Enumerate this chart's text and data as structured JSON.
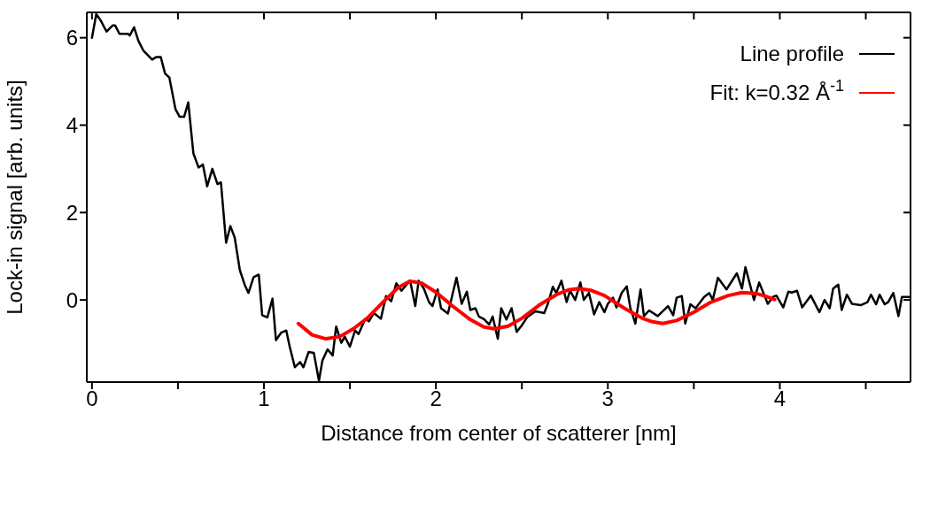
{
  "chart_data": {
    "type": "line",
    "xlabel": "Distance from center of scatterer [nm]",
    "ylabel": "Lock-in signal [arb. units]",
    "xlim": [
      -0.03,
      4.76
    ],
    "ylim": [
      -1.88,
      6.58
    ],
    "xticks": [
      0,
      {
        "value": 0.5,
        "label": null
      },
      1,
      {
        "value": 1.5,
        "label": null
      },
      2,
      {
        "value": 2.5,
        "label": null
      },
      3,
      {
        "value": 3.5,
        "label": null
      },
      4,
      {
        "value": 4.5,
        "label": null
      }
    ],
    "yticks": [
      0,
      2,
      4,
      6
    ],
    "grid": false,
    "legend": "top right",
    "marker": "none",
    "line_style": "solid",
    "series": [
      {
        "name": "Line profile",
        "color": "#000000",
        "x": [
          0,
          0.025,
          0.05,
          0.085,
          0.12,
          0.135,
          0.16,
          0.21,
          0.22,
          0.245,
          0.27,
          0.3,
          0.35,
          0.375,
          0.4,
          0.425,
          0.45,
          0.486,
          0.51,
          0.536,
          0.56,
          0.59,
          0.62,
          0.645,
          0.67,
          0.7,
          0.73,
          0.75,
          0.78,
          0.805,
          0.83,
          0.86,
          0.89,
          0.91,
          0.94,
          0.97,
          0.99,
          1.02,
          1.05,
          1.07,
          1.1,
          1.13,
          1.15,
          1.18,
          1.21,
          1.23,
          1.26,
          1.29,
          1.32,
          1.34,
          1.37,
          1.4,
          1.42,
          1.45,
          1.47,
          1.5,
          1.53,
          1.55,
          1.59,
          1.61,
          1.64,
          1.68,
          1.71,
          1.74,
          1.77,
          1.8,
          1.83,
          1.85,
          1.88,
          1.9,
          1.93,
          1.96,
          1.98,
          2.01,
          2.03,
          2.07,
          2.12,
          2.15,
          2.18,
          2.2,
          2.23,
          2.25,
          2.28,
          2.31,
          2.33,
          2.36,
          2.38,
          2.41,
          2.44,
          2.47,
          2.5,
          2.53,
          2.56,
          2.58,
          2.63,
          2.65,
          2.68,
          2.7,
          2.73,
          2.76,
          2.78,
          2.81,
          2.84,
          2.86,
          2.89,
          2.92,
          2.95,
          2.98,
          3,
          3.03,
          3.05,
          3.08,
          3.11,
          3.13,
          3.16,
          3.19,
          3.21,
          3.24,
          3.29,
          3.35,
          3.38,
          3.4,
          3.43,
          3.45,
          3.48,
          3.51,
          3.56,
          3.59,
          3.61,
          3.64,
          3.69,
          3.75,
          3.78,
          3.8,
          3.85,
          3.88,
          3.93,
          3.96,
          3.98,
          4.02,
          4.05,
          4.07,
          4.1,
          4.13,
          4.18,
          4.23,
          4.26,
          4.29,
          4.31,
          4.34,
          4.36,
          4.39,
          4.42,
          4.47,
          4.51,
          4.53,
          4.56,
          4.58,
          4.61,
          4.63,
          4.66,
          4.69,
          4.71,
          4.75
        ],
        "values": [
          6.0,
          6.54,
          6.4,
          6.14,
          6.28,
          6.28,
          6.09,
          6.09,
          6.05,
          6.24,
          5.93,
          5.7,
          5.5,
          5.56,
          5.56,
          5.18,
          5.09,
          4.36,
          4.19,
          4.19,
          4.52,
          3.35,
          3.03,
          3.1,
          2.6,
          3.0,
          2.65,
          2.69,
          1.31,
          1.69,
          1.43,
          0.68,
          0.33,
          0.16,
          0.52,
          0.58,
          -0.35,
          -0.4,
          0.03,
          -0.92,
          -0.75,
          -0.7,
          -1.07,
          -1.54,
          -1.42,
          -1.54,
          -1.19,
          -1.21,
          -1.85,
          -1.39,
          -1.13,
          -1.27,
          -0.61,
          -0.98,
          -0.84,
          -1.07,
          -0.7,
          -0.78,
          -0.43,
          -0.49,
          -0.3,
          -0.43,
          0.09,
          -0.03,
          0.38,
          0.21,
          0.35,
          0.44,
          -0.14,
          0.44,
          0.26,
          -0.05,
          -0.14,
          0.24,
          -0.19,
          -0.31,
          0.51,
          -0.09,
          0.19,
          -0.23,
          -0.19,
          -0.38,
          -0.44,
          -0.56,
          -0.38,
          -0.89,
          -0.19,
          -0.45,
          -0.19,
          -0.73,
          -0.58,
          -0.4,
          -0.31,
          -0.26,
          -0.3,
          -0.1,
          0.3,
          0.16,
          0.44,
          -0.05,
          0.21,
          0.0,
          0.4,
          0.0,
          0.16,
          -0.33,
          -0.05,
          -0.28,
          -0.09,
          0.05,
          -0.17,
          0.16,
          0.31,
          -0.17,
          -0.54,
          0.24,
          -0.37,
          -0.24,
          -0.37,
          -0.14,
          -0.35,
          0.05,
          0.09,
          -0.54,
          -0.1,
          -0.19,
          0.07,
          0.16,
          0.0,
          0.51,
          0.24,
          0.61,
          0.26,
          0.75,
          0.0,
          0.4,
          -0.09,
          0.07,
          0.1,
          -0.17,
          0.19,
          0.17,
          0.21,
          -0.17,
          0.1,
          -0.28,
          0.0,
          -0.19,
          0.26,
          0.35,
          -0.23,
          0.12,
          -0.09,
          -0.12,
          -0.05,
          0.12,
          -0.1,
          0.12,
          -0.1,
          -0.05,
          0.16,
          -0.37,
          0.07,
          0.07
        ]
      },
      {
        "name": "Fit: k=0.32 Å$^{-1}$",
        "color": "#ff0000",
        "x": [
          1.2,
          1.28,
          1.36,
          1.44,
          1.52,
          1.6,
          1.7,
          1.78,
          1.85,
          1.92,
          2.0,
          2.1,
          2.2,
          2.28,
          2.34,
          2.42,
          2.5,
          2.6,
          2.7,
          2.77,
          2.83,
          2.9,
          2.98,
          3.1,
          3.2,
          3.26,
          3.32,
          3.4,
          3.5,
          3.6,
          3.7,
          3.78,
          3.86,
          3.92,
          3.97
        ],
        "values": [
          -0.54,
          -0.8,
          -0.89,
          -0.84,
          -0.66,
          -0.42,
          -0.02,
          0.28,
          0.43,
          0.38,
          0.18,
          -0.15,
          -0.45,
          -0.62,
          -0.66,
          -0.6,
          -0.42,
          -0.12,
          0.12,
          0.23,
          0.26,
          0.22,
          0.1,
          -0.2,
          -0.42,
          -0.5,
          -0.54,
          -0.47,
          -0.28,
          -0.05,
          0.1,
          0.17,
          0.15,
          0.08,
          0.01
        ]
      }
    ]
  }
}
